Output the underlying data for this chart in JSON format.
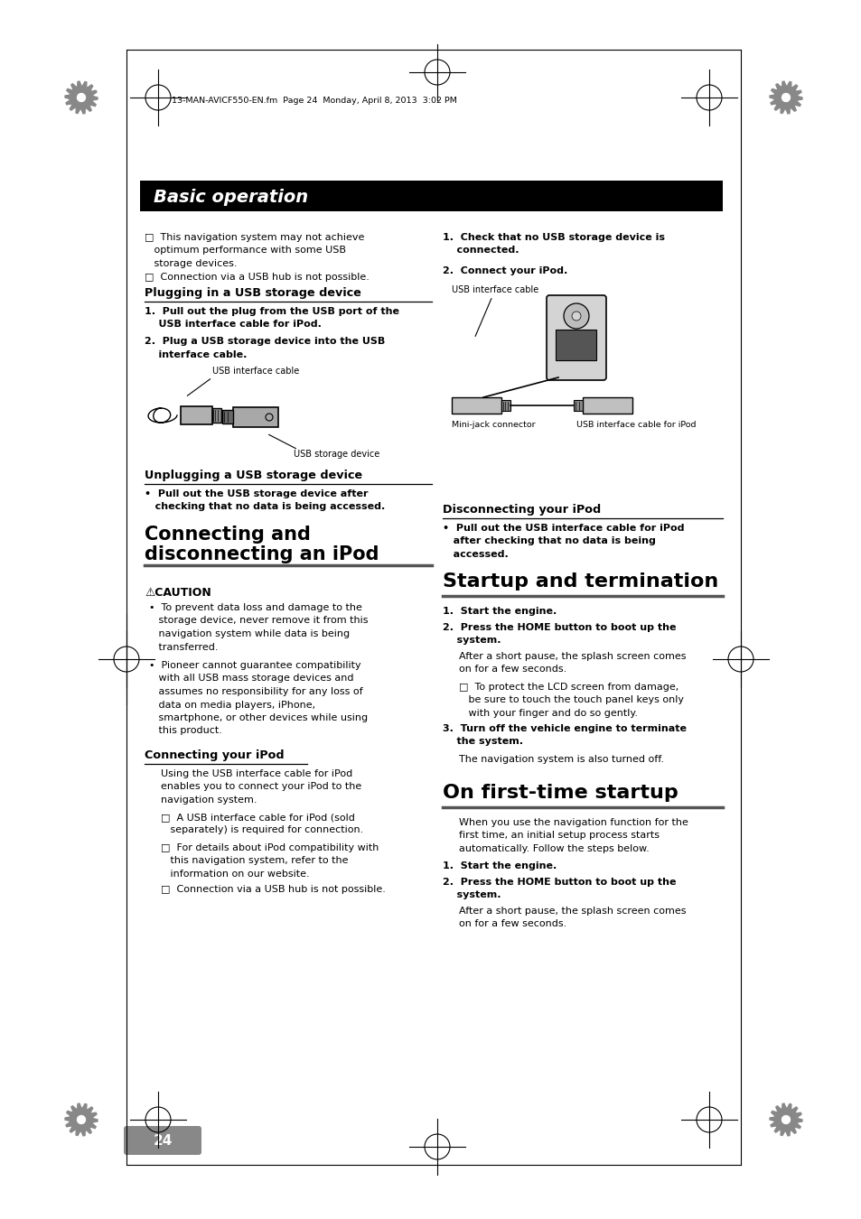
{
  "bg_color": "#ffffff",
  "page_number": "24",
  "header_text": "13-MAN-AVICF550-EN.fm  Page 24  Monday, April 8, 2013  3:02 PM",
  "section_title": "Basic operation",
  "note1_line1": "□  This navigation system may not achieve",
  "note1_line2": "   optimum performance with some USB",
  "note1_line3": "   storage devices.",
  "note2": "□  Connection via a USB hub is not possible.",
  "plug_heading": "Plugging in a USB storage device",
  "plug_step1a": "1.  Pull out the plug from the USB port of the",
  "plug_step1b": "    USB interface cable for iPod.",
  "plug_step2a": "2.  Plug a USB storage device into the USB",
  "plug_step2b": "    interface cable.",
  "usb_cable_label": "USB interface cable",
  "usb_device_label": "USB storage device",
  "unplug_heading": "Unplugging a USB storage device",
  "unplug_bullet_a": "•  Pull out the USB storage device after",
  "unplug_bullet_b": "   checking that no data is being accessed.",
  "connect_heading_1": "Connecting and",
  "connect_heading_2": "disconnecting an iPod",
  "caution_heading": "⚠CAUTION",
  "caution_b1_1": "•  To prevent data loss and damage to the",
  "caution_b1_2": "   storage device, never remove it from this",
  "caution_b1_3": "   navigation system while data is being",
  "caution_b1_4": "   transferred.",
  "caution_b2_1": "•  Pioneer cannot guarantee compatibility",
  "caution_b2_2": "   with all USB mass storage devices and",
  "caution_b2_3": "   assumes no responsibility for any loss of",
  "caution_b2_4": "   data on media players, iPhone,",
  "caution_b2_5": "   smartphone, or other devices while using",
  "caution_b2_6": "   this product.",
  "conn_ipod_heading": "Connecting your iPod",
  "conn_ipod_t1": "Using the USB interface cable for iPod",
  "conn_ipod_t2": "enables you to connect your iPod to the",
  "conn_ipod_t3": "navigation system.",
  "conn_note1a": "□  A USB interface cable for iPod (sold",
  "conn_note1b": "   separately) is required for connection.",
  "conn_note2a": "□  For details about iPod compatibility with",
  "conn_note2b": "   this navigation system, refer to the",
  "conn_note2c": "   information on our website.",
  "conn_note3": "□  Connection via a USB hub is not possible.",
  "right_step1a": "1.  Check that no USB storage device is",
  "right_step1b": "    connected.",
  "right_step2": "2.  Connect your iPod.",
  "usb_cable_label2": "USB interface cable",
  "mini_jack_label": "Mini-jack connector",
  "usb_ipod_label": "USB interface cable for iPod",
  "disconn_ipod_heading": "Disconnecting your iPod",
  "disconn_b1": "•  Pull out the USB interface cable for iPod",
  "disconn_b2": "   after checking that no data is being",
  "disconn_b3": "   accessed.",
  "startup_heading": "Startup and termination",
  "startup_step1": "1.  Start the engine.",
  "startup_step2a": "2.  Press the HOME button to boot up the",
  "startup_step2b": "    system.",
  "startup_t2a": "After a short pause, the splash screen comes",
  "startup_t2b": "on for a few seconds.",
  "startup_note1a": "□  To protect the LCD screen from damage,",
  "startup_note1b": "   be sure to touch the touch panel keys only",
  "startup_note1c": "   with your finger and do so gently.",
  "startup_step3a": "3.  Turn off the vehicle engine to terminate",
  "startup_step3b": "    the system.",
  "startup_t3": "The navigation system is also turned off.",
  "firsttime_heading": "On first-time startup",
  "firsttime_t1": "When you use the navigation function for the",
  "firsttime_t2": "first time, an initial setup process starts",
  "firsttime_t3": "automatically. Follow the steps below.",
  "firsttime_step1": "1.  Start the engine.",
  "firsttime_step2a": "2.  Press the HOME button to boot up the",
  "firsttime_step2b": "    system.",
  "firsttime_t4": "After a short pause, the splash screen comes",
  "firsttime_t5": "on for a few seconds."
}
